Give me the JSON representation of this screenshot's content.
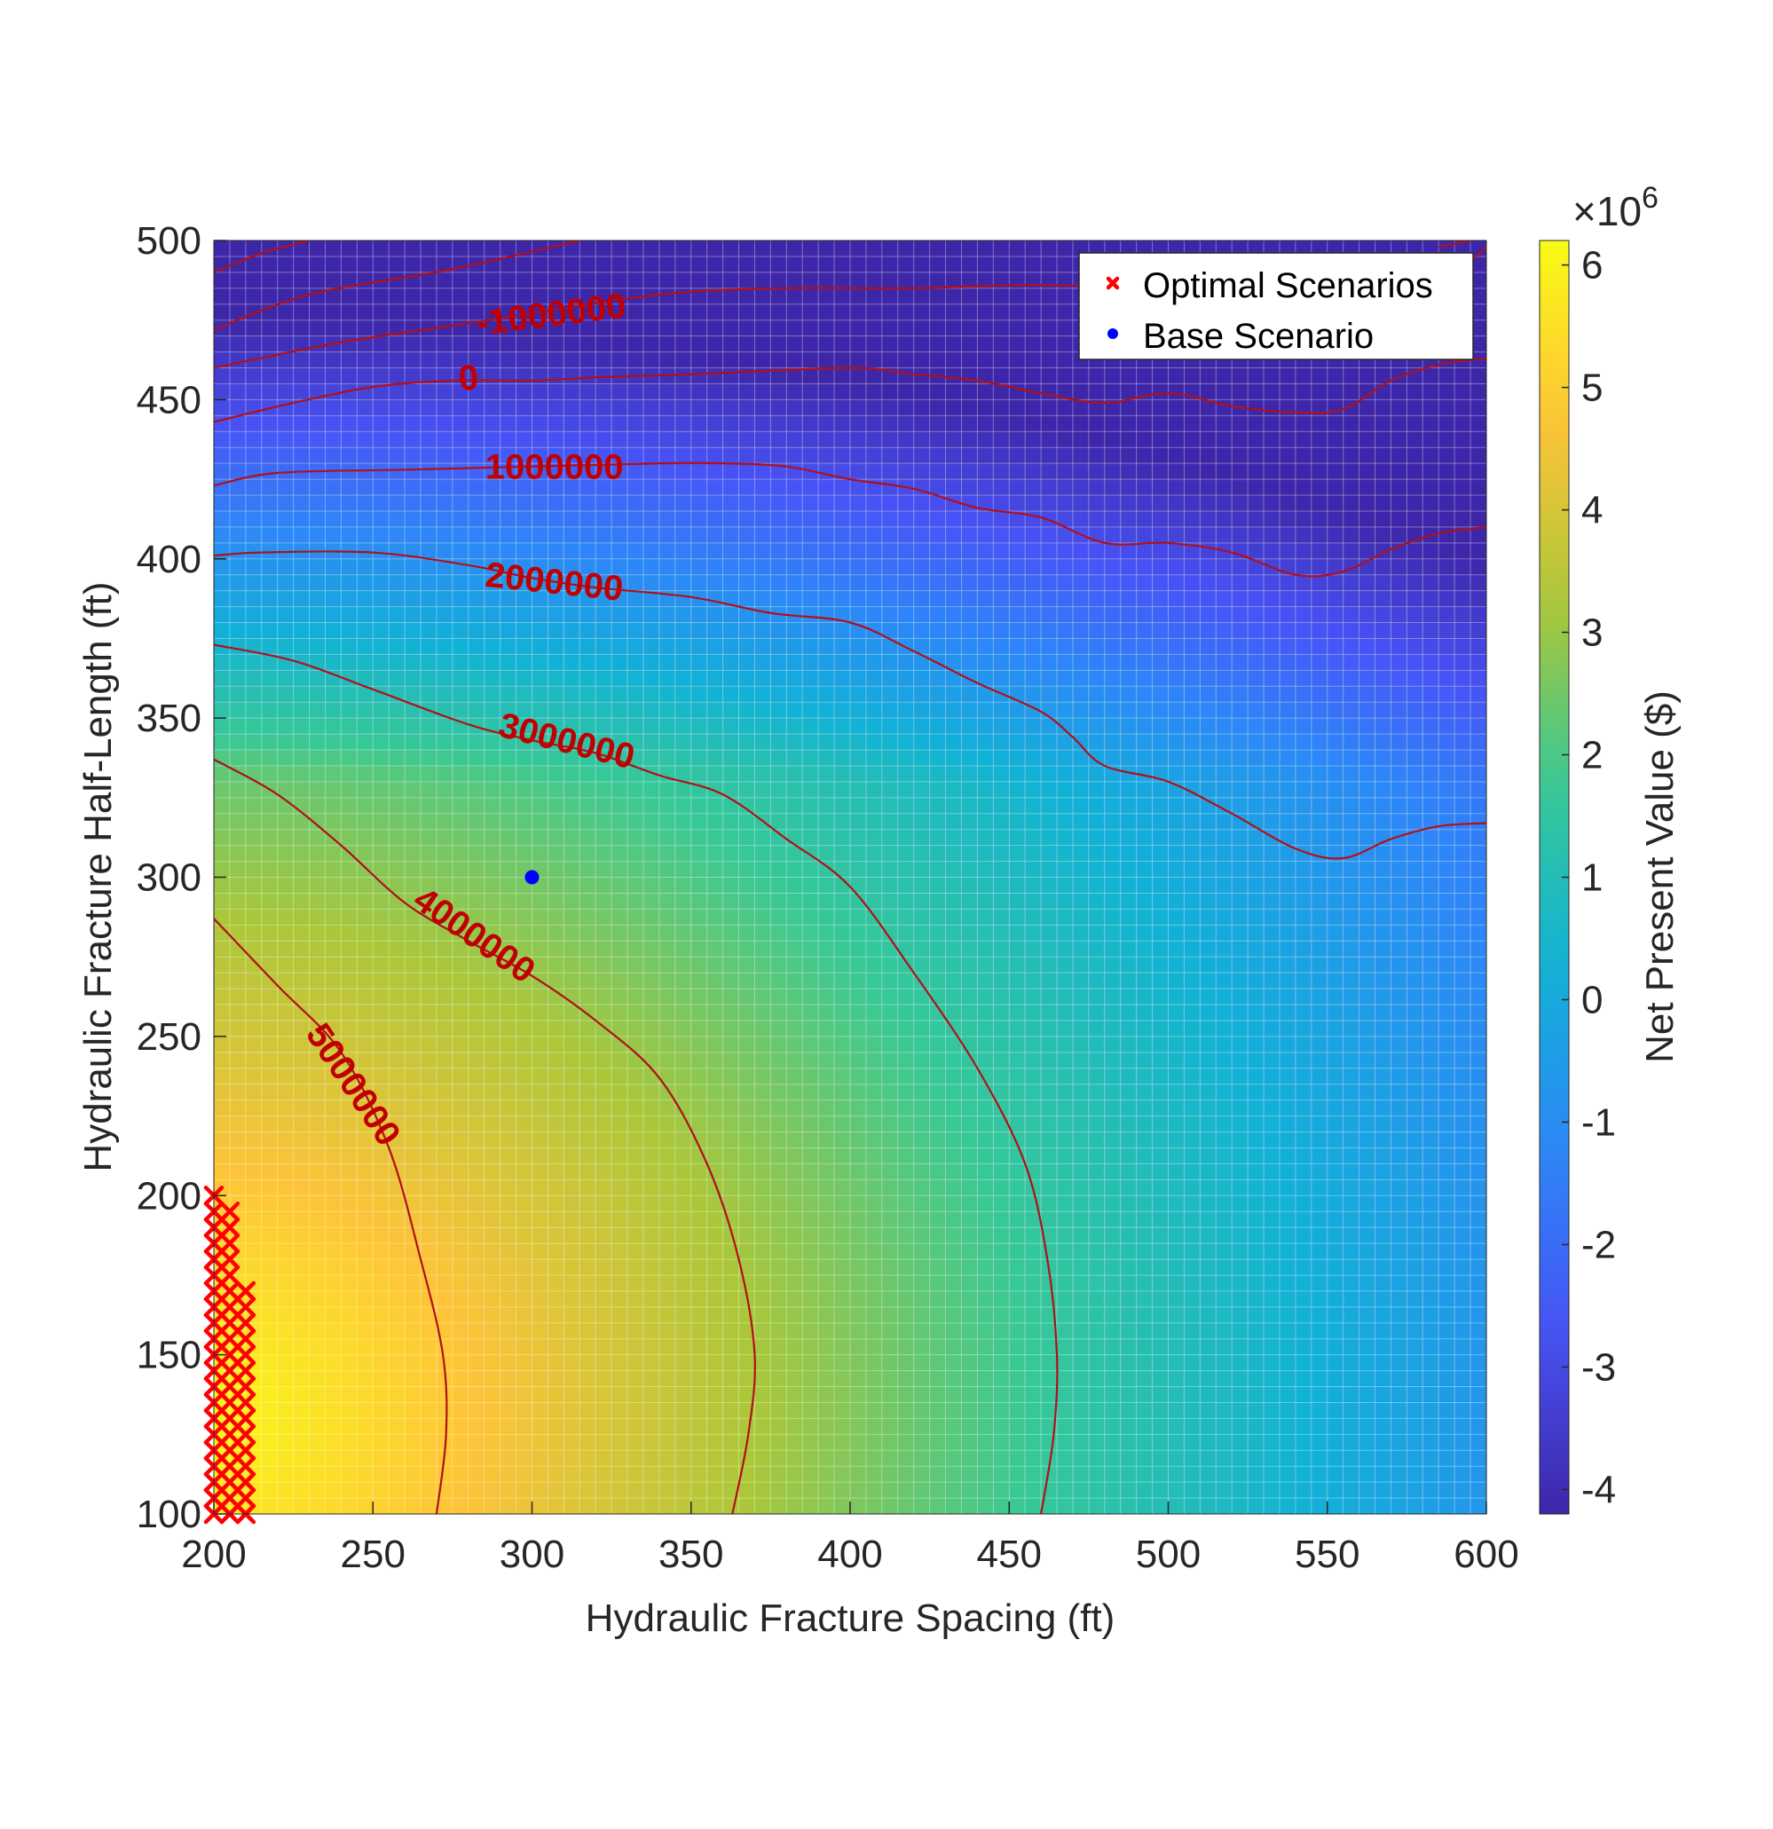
{
  "chart_data": {
    "type": "heatmap",
    "title": "",
    "xlabel": "Hydraulic Fracture Spacing (ft)",
    "ylabel": "Hydraulic Fracture Half-Length (ft)",
    "xlim": [
      200,
      600
    ],
    "ylim": [
      100,
      500
    ],
    "xticks": [
      "200",
      "250",
      "300",
      "350",
      "400",
      "450",
      "500",
      "550",
      "600"
    ],
    "yticks": [
      "100",
      "150",
      "200",
      "250",
      "300",
      "350",
      "400",
      "450",
      "500"
    ],
    "colorbar": {
      "label": "Net Present Value ($)",
      "exponent": "×10",
      "exponent_power": "6",
      "range": [
        -4.2,
        6.2
      ],
      "ticks": [
        "-4",
        "-3",
        "-2",
        "-1",
        "0",
        "1",
        "2",
        "3",
        "4",
        "5",
        "6"
      ],
      "colormap": "parula"
    },
    "grid": true,
    "legend": {
      "placement": "top-right",
      "entries": [
        {
          "label": "Optimal Scenarios",
          "marker": "x",
          "color": "#ff0000"
        },
        {
          "label": "Base Scenario",
          "marker": "dot",
          "color": "#0000ff"
        }
      ]
    },
    "contours": [
      {
        "level": "-1000000",
        "points": [
          [
            200,
            490
          ],
          [
            215,
            496
          ],
          [
            230,
            500
          ]
        ]
      },
      {
        "level": "-1000000",
        "points": [
          [
            200,
            472
          ],
          [
            230,
            483
          ],
          [
            275,
            491
          ],
          [
            315,
            500
          ]
        ]
      },
      {
        "level": "-1000000",
        "points": [
          [
            200,
            460
          ],
          [
            240,
            468
          ],
          [
            280,
            474
          ],
          [
            340,
            483
          ],
          [
            380,
            485
          ],
          [
            420,
            485
          ],
          [
            460,
            486
          ],
          [
            500,
            484
          ],
          [
            540,
            480
          ],
          [
            570,
            482
          ],
          [
            590,
            490
          ],
          [
            600,
            498
          ]
        ]
      },
      {
        "level": "-1000000",
        "points": [
          [
            585,
            498
          ],
          [
            600,
            501
          ]
        ]
      },
      {
        "level": "0",
        "points": [
          [
            200,
            443
          ],
          [
            225,
            449
          ],
          [
            250,
            454
          ],
          [
            275,
            456
          ],
          [
            300,
            456
          ],
          [
            320,
            457
          ],
          [
            350,
            458
          ],
          [
            400,
            460
          ],
          [
            420,
            458
          ],
          [
            440,
            456
          ],
          [
            460,
            452
          ],
          [
            480,
            449
          ],
          [
            500,
            452
          ],
          [
            520,
            448
          ],
          [
            540,
            446
          ],
          [
            555,
            447
          ],
          [
            570,
            456
          ],
          [
            585,
            461
          ],
          [
            600,
            463
          ]
        ]
      },
      {
        "level": "1000000",
        "points": [
          [
            200,
            423
          ],
          [
            220,
            427
          ],
          [
            260,
            428
          ],
          [
            300,
            429
          ],
          [
            340,
            430
          ],
          [
            360,
            430
          ],
          [
            380,
            429
          ],
          [
            400,
            425
          ],
          [
            420,
            422
          ],
          [
            440,
            416
          ],
          [
            460,
            413
          ],
          [
            480,
            405
          ],
          [
            500,
            405
          ],
          [
            520,
            402
          ],
          [
            540,
            395
          ],
          [
            555,
            396
          ],
          [
            570,
            403
          ],
          [
            585,
            408
          ],
          [
            600,
            410
          ]
        ]
      },
      {
        "level": "2000000",
        "points": [
          [
            200,
            401
          ],
          [
            215,
            402
          ],
          [
            250,
            402
          ],
          [
            280,
            398
          ],
          [
            300,
            394
          ],
          [
            320,
            391
          ],
          [
            350,
            388
          ],
          [
            375,
            383
          ],
          [
            400,
            380
          ],
          [
            420,
            371
          ],
          [
            440,
            361
          ],
          [
            460,
            352
          ],
          [
            470,
            344
          ],
          [
            480,
            335
          ],
          [
            500,
            330
          ],
          [
            520,
            320
          ],
          [
            540,
            309
          ],
          [
            555,
            306
          ],
          [
            570,
            312
          ],
          [
            585,
            316
          ],
          [
            600,
            317
          ]
        ]
      },
      {
        "level": "3000000",
        "points": [
          [
            200,
            373
          ],
          [
            225,
            368
          ],
          [
            250,
            359
          ],
          [
            280,
            348
          ],
          [
            300,
            343
          ],
          [
            320,
            339
          ],
          [
            340,
            332
          ],
          [
            360,
            326
          ],
          [
            380,
            312
          ],
          [
            400,
            297
          ],
          [
            420,
            270
          ],
          [
            440,
            240
          ],
          [
            455,
            210
          ],
          [
            462,
            180
          ],
          [
            465,
            150
          ],
          [
            464,
            125
          ],
          [
            460,
            100
          ]
        ]
      },
      {
        "level": "4000000",
        "points": [
          [
            200,
            337
          ],
          [
            220,
            326
          ],
          [
            240,
            310
          ],
          [
            260,
            292
          ],
          [
            280,
            280
          ],
          [
            300,
            269
          ],
          [
            320,
            255
          ],
          [
            340,
            237
          ],
          [
            355,
            210
          ],
          [
            365,
            180
          ],
          [
            370,
            150
          ],
          [
            368,
            125
          ],
          [
            363,
            100
          ]
        ]
      },
      {
        "level": "5000000",
        "points": [
          [
            200,
            287
          ],
          [
            220,
            266
          ],
          [
            240,
            245
          ],
          [
            255,
            215
          ],
          [
            265,
            180
          ],
          [
            272,
            150
          ],
          [
            273,
            125
          ],
          [
            270,
            100
          ]
        ]
      }
    ],
    "contour_labels": [
      {
        "text": "-1000000",
        "x": 306,
        "y": 477,
        "angle": -7
      },
      {
        "text": "0",
        "x": 280,
        "y": 457,
        "angle": -5
      },
      {
        "text": "1000000",
        "x": 307,
        "y": 429,
        "angle": 0
      },
      {
        "text": "2000000",
        "x": 307,
        "y": 393,
        "angle": 6
      },
      {
        "text": "3000000",
        "x": 311,
        "y": 343,
        "angle": 14
      },
      {
        "text": "4000000",
        "x": 282,
        "y": 282,
        "angle": 35
      },
      {
        "text": "5000000",
        "x": 244,
        "y": 235,
        "angle": 56
      }
    ],
    "base_scenario": {
      "x": 300,
      "y": 300
    },
    "optimal_scenarios": [
      [
        200,
        100
      ],
      [
        200,
        105
      ],
      [
        200,
        110
      ],
      [
        200,
        115
      ],
      [
        200,
        120
      ],
      [
        200,
        125
      ],
      [
        200,
        130
      ],
      [
        200,
        135
      ],
      [
        200,
        140
      ],
      [
        200,
        145
      ],
      [
        200,
        150
      ],
      [
        200,
        155
      ],
      [
        200,
        160
      ],
      [
        200,
        165
      ],
      [
        200,
        170
      ],
      [
        200,
        175
      ],
      [
        200,
        180
      ],
      [
        200,
        185
      ],
      [
        200,
        190
      ],
      [
        200,
        195
      ],
      [
        200,
        200
      ],
      [
        205,
        100
      ],
      [
        205,
        105
      ],
      [
        205,
        110
      ],
      [
        205,
        115
      ],
      [
        205,
        120
      ],
      [
        205,
        125
      ],
      [
        205,
        130
      ],
      [
        205,
        135
      ],
      [
        205,
        140
      ],
      [
        205,
        145
      ],
      [
        205,
        150
      ],
      [
        205,
        155
      ],
      [
        205,
        160
      ],
      [
        205,
        165
      ],
      [
        205,
        170
      ],
      [
        205,
        175
      ],
      [
        205,
        180
      ],
      [
        205,
        185
      ],
      [
        205,
        190
      ],
      [
        205,
        195
      ],
      [
        210,
        100
      ],
      [
        210,
        105
      ],
      [
        210,
        110
      ],
      [
        210,
        115
      ],
      [
        210,
        120
      ],
      [
        210,
        125
      ],
      [
        210,
        130
      ],
      [
        210,
        135
      ],
      [
        210,
        140
      ],
      [
        210,
        145
      ],
      [
        210,
        150
      ],
      [
        210,
        155
      ],
      [
        210,
        160
      ],
      [
        210,
        165
      ],
      [
        210,
        170
      ]
    ]
  }
}
